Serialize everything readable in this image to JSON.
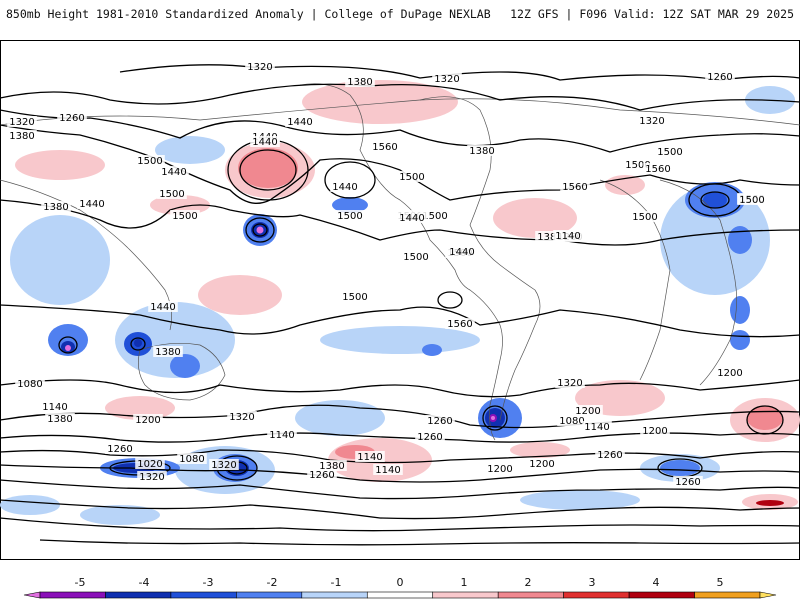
{
  "header": {
    "title_left": "850mb Height 1981-2010 Standardized Anomaly | College of DuPage NEXLAB",
    "title_right": "12Z GFS | F096 Valid: 12Z SAT MAR 29 2025"
  },
  "colorbar": {
    "ticks": [
      "-5",
      "-4",
      "-3",
      "-2",
      "-1",
      "0",
      "1",
      "2",
      "3",
      "4",
      "5"
    ],
    "colors": [
      "#e070e0",
      "#8a10b8",
      "#1030b0",
      "#2050d8",
      "#5080f0",
      "#b8d4f8",
      "#ffffff",
      "#f8c8cc",
      "#f08890",
      "#e03030",
      "#b00010",
      "#f0a020",
      "#ffe060"
    ]
  },
  "map": {
    "contour_labels": [
      "1320",
      "1380",
      "1320",
      "1260",
      "1320",
      "1260",
      "1440",
      "1440",
      "1320",
      "1380",
      "1500",
      "1440",
      "1560",
      "1380",
      "1500",
      "1440",
      "1380",
      "1440",
      "1560",
      "1500",
      "1560",
      "1440",
      "1500",
      "1500",
      "1500",
      "1500",
      "1500",
      "1500",
      "1500",
      "1500",
      "1500",
      "1380",
      "1260",
      "1560",
      "1500",
      "1500",
      "1440",
      "1140",
      "1440",
      "1560",
      "1440",
      "1380",
      "1320",
      "1200",
      "1080",
      "1140",
      "1380",
      "1200",
      "1320",
      "1260",
      "1260",
      "1140",
      "1200",
      "1080",
      "1140",
      "1200",
      "1260",
      "1020",
      "1080",
      "1320",
      "1140",
      "1140",
      "1380",
      "1260",
      "1200",
      "1200",
      "1260",
      "1260",
      "1320"
    ]
  }
}
